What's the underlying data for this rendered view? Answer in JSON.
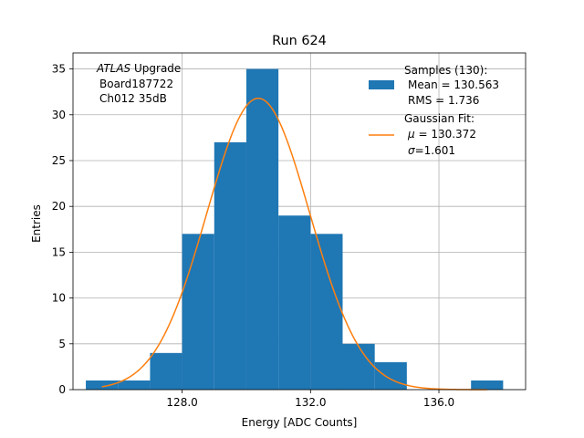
{
  "chart_data": {
    "type": "bar",
    "title": "Run 624",
    "xlabel": "Energy [ADC Counts]",
    "ylabel": "Entries",
    "xlim": [
      124.6,
      138.7
    ],
    "ylim": [
      0,
      36.75
    ],
    "xticks": [
      128,
      132,
      136
    ],
    "xtick_labels": [
      "128.0",
      "132.0",
      "136.0"
    ],
    "yticks": [
      0,
      5,
      10,
      15,
      20,
      25,
      30,
      35
    ],
    "ytick_labels": [
      "0",
      "5",
      "10",
      "15",
      "20",
      "25",
      "30",
      "35"
    ],
    "grid": true,
    "bin_edges": [
      125,
      126,
      127,
      128,
      129,
      130,
      131,
      132,
      133,
      134,
      135,
      136,
      137,
      138
    ],
    "counts": [
      1,
      1,
      4,
      17,
      27,
      35,
      19,
      17,
      5,
      3,
      0,
      0,
      1
    ],
    "fit": {
      "type": "gaussian",
      "mu": 130.372,
      "sigma": 1.601,
      "peak": 31.8,
      "x_range": [
        125.5,
        137.5
      ]
    },
    "annotation": {
      "line1_italic": "ATLAS",
      "line1_rest": " Upgrade",
      "line2": "Board187722",
      "line3": "Ch012 35dB"
    },
    "legend": {
      "position": "top-right",
      "samples_title": "Samples (130):",
      "samples_mean": "Mean = 130.563",
      "samples_rms": "RMS = 1.736",
      "fit_title": "Gaussian Fit:",
      "fit_mu_symbol": "μ",
      "fit_mu_value": " = 130.372",
      "fit_sigma_symbol": "σ",
      "fit_sigma_value": "=1.601"
    },
    "colors": {
      "bars": "#1f77b4",
      "fit": "#ff7f0e",
      "grid": "#b0b0b0"
    }
  }
}
